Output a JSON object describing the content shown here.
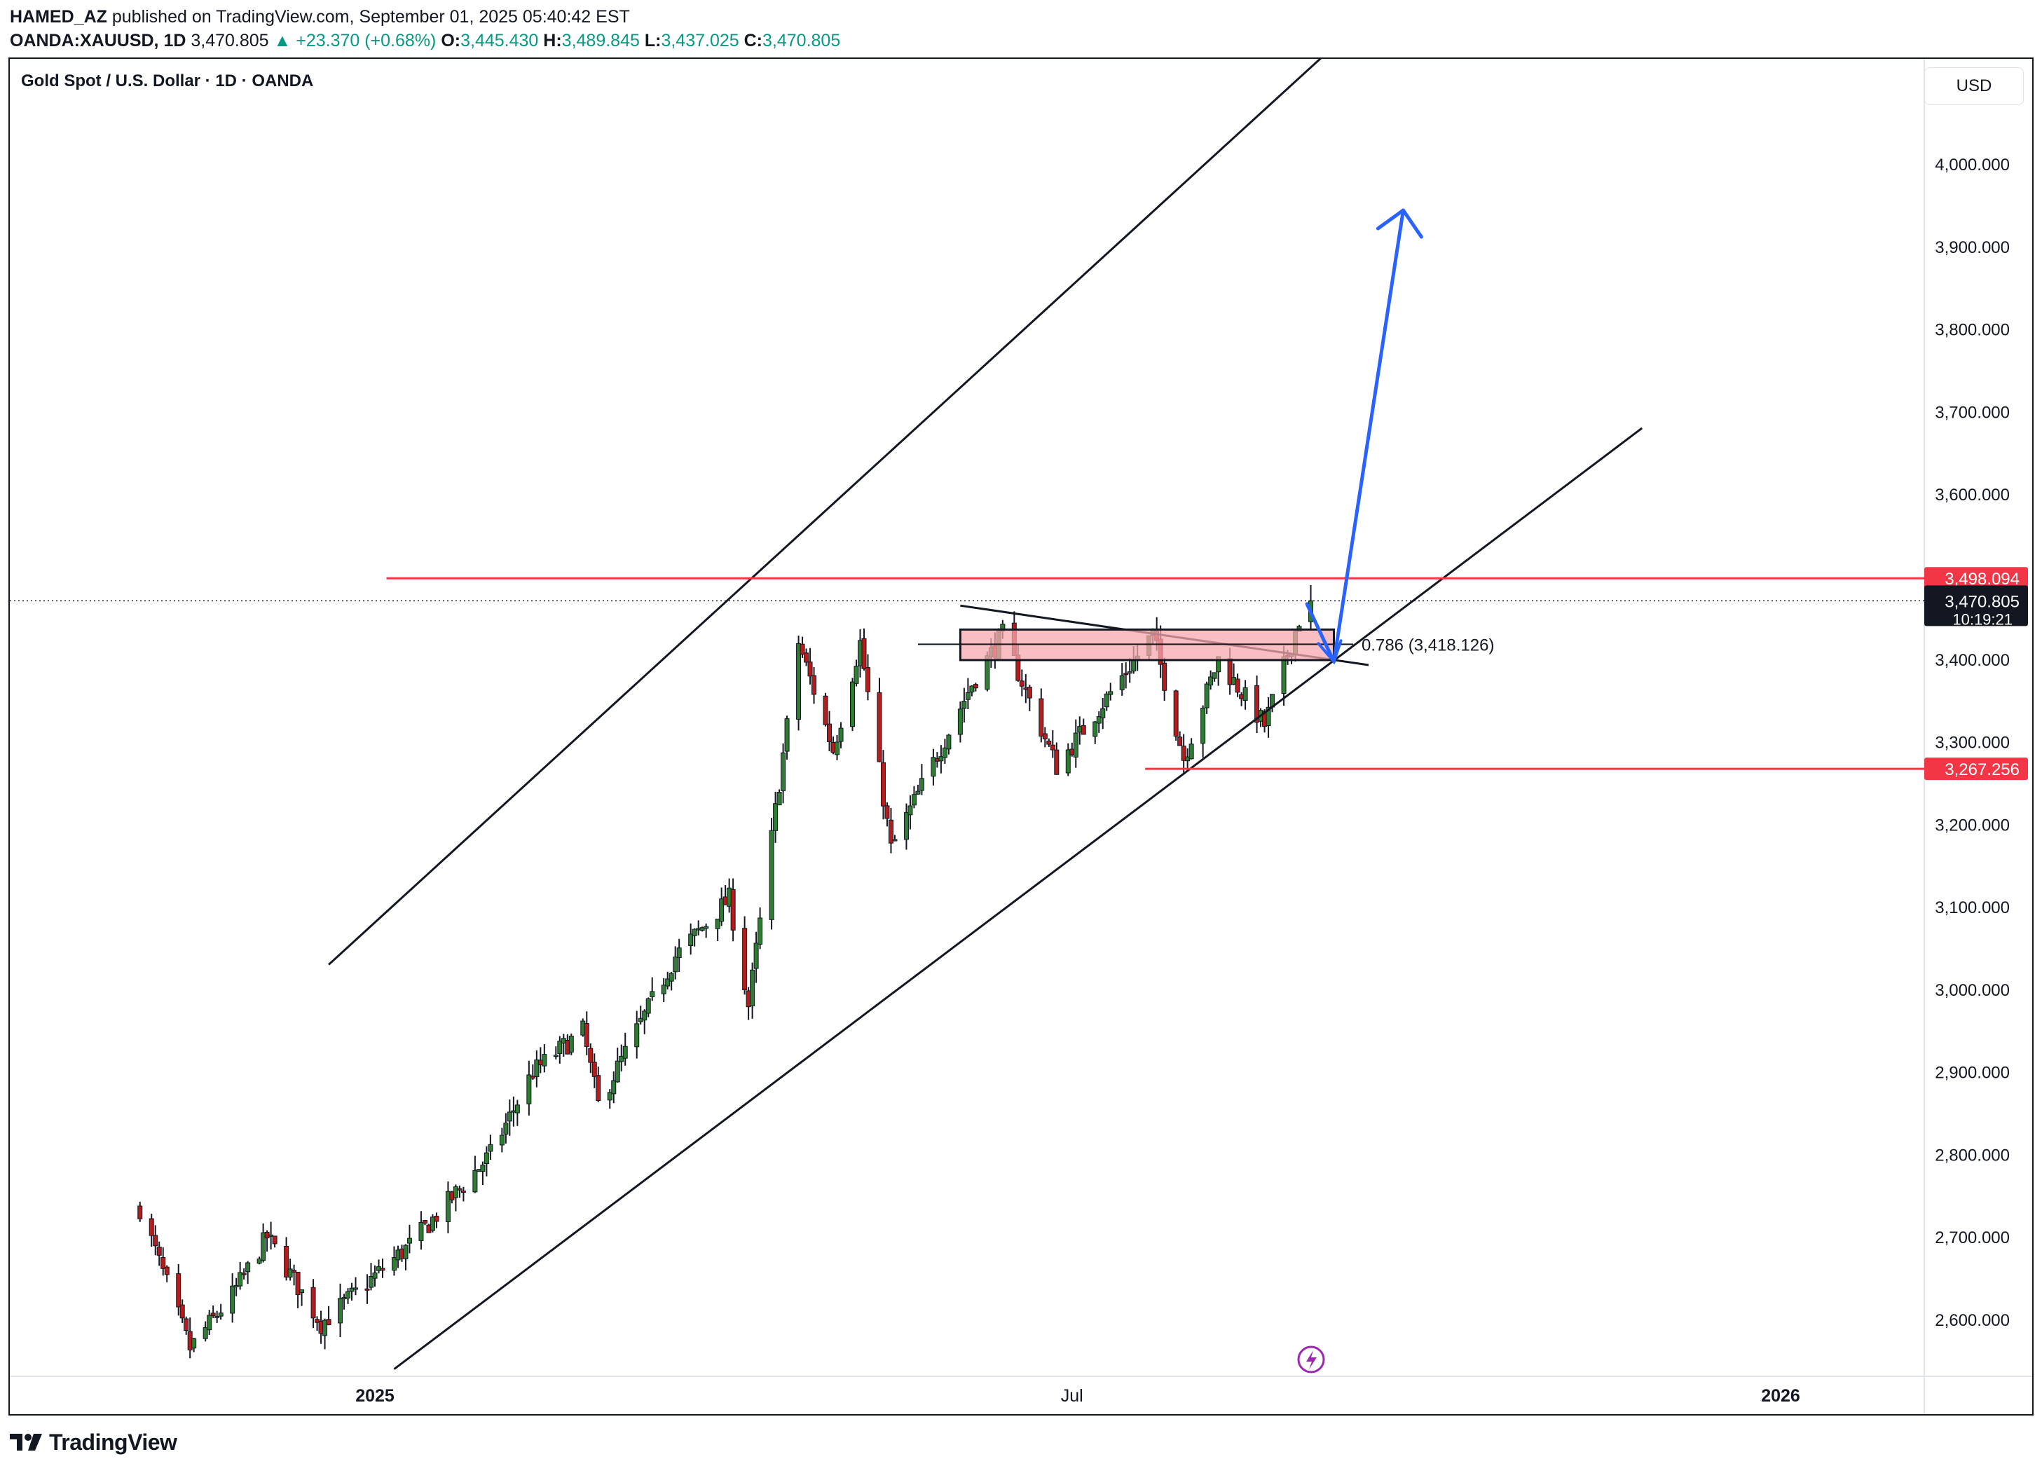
{
  "header": {
    "author": "HAMED_AZ",
    "published_text": "published on TradingView.com, September 01, 2025 05:40:42 EST",
    "symbol": "OANDA:XAUUSD, 1D",
    "last": "3,470.805",
    "change": "▲ +23.370 (+0.68%)",
    "o_label": "O:",
    "o_value": "3,445.430",
    "h_label": "H:",
    "h_value": "3,489.845",
    "l_label": "L:",
    "l_value": "3,437.025",
    "c_label": "C:",
    "c_value": "3,470.805"
  },
  "chart_title": "Gold Spot / U.S. Dollar · 1D · OANDA",
  "currency_label": "USD",
  "footer": {
    "brand": "TradingView"
  },
  "colors": {
    "up": "#089981",
    "down": "#f23645",
    "candle_body_up": "#2e7d32",
    "candle_body_down": "#b71c1c",
    "channel": "#131722",
    "level": "#f23645",
    "arrow": "#2962ff",
    "zone_fill": "#f7a8ad"
  },
  "chart_data": {
    "type": "candlestick",
    "x_ticks": [
      "2025",
      "Jul",
      "2026"
    ],
    "y_ticks": [
      "2,600.000",
      "2,700.000",
      "2,800.000",
      "2,900.000",
      "3,000.000",
      "3,100.000",
      "3,200.000",
      "3,300.000",
      "3,400.000",
      "3,500.000",
      "3,600.000",
      "3,700.000",
      "3,800.000",
      "3,900.000",
      "4,000.000"
    ],
    "y_tick_values": [
      2600,
      2700,
      2800,
      2900,
      3000,
      3100,
      3200,
      3300,
      3400,
      3500,
      3600,
      3700,
      3800,
      3900,
      4000
    ],
    "ylim": [
      2533,
      4130
    ],
    "price_labels": [
      {
        "text": "3,498.094",
        "value": 3498.094,
        "kind": "level"
      },
      {
        "text": "3,470.805",
        "sub": "10:19:21",
        "value": 3470.805,
        "kind": "last"
      },
      {
        "text": "3,267.256",
        "value": 3267.256,
        "kind": "level"
      }
    ],
    "fib_label": "0.786 (3,418.126)",
    "anchors": [
      {
        "date": "2024-11-01",
        "close": 2735
      },
      {
        "date": "2024-11-14",
        "close": 2565
      },
      {
        "date": "2024-11-25",
        "close": 2630
      },
      {
        "date": "2024-12-04",
        "close": 2700
      },
      {
        "date": "2024-12-18",
        "close": 2595
      },
      {
        "date": "2025-01-10",
        "close": 2690
      },
      {
        "date": "2025-01-31",
        "close": 2800
      },
      {
        "date": "2025-02-11",
        "close": 2900
      },
      {
        "date": "2025-02-24",
        "close": 2950
      },
      {
        "date": "2025-02-28",
        "close": 2860
      },
      {
        "date": "2025-03-20",
        "close": 3040
      },
      {
        "date": "2025-04-03",
        "close": 3110
      },
      {
        "date": "2025-04-08",
        "close": 2980
      },
      {
        "date": "2025-04-21",
        "close": 3420
      },
      {
        "date": "2025-04-30",
        "close": 3290
      },
      {
        "date": "2025-05-07",
        "close": 3420
      },
      {
        "date": "2025-05-15",
        "close": 3170
      },
      {
        "date": "2025-06-05",
        "close": 3370
      },
      {
        "date": "2025-06-13",
        "close": 3430
      },
      {
        "date": "2025-06-27",
        "close": 3270
      },
      {
        "date": "2025-07-22",
        "close": 3430
      },
      {
        "date": "2025-07-30",
        "close": 3280
      },
      {
        "date": "2025-08-08",
        "close": 3400
      },
      {
        "date": "2025-08-20",
        "close": 3320
      },
      {
        "date": "2025-08-29",
        "close": 3448
      },
      {
        "date": "2025-09-01",
        "close": 3470.805
      }
    ],
    "channel_upper": [
      {
        "date": "2024-12-20",
        "value": 3030
      },
      {
        "date": "2026-01-04",
        "value": 4650
      }
    ],
    "channel_lower": [
      {
        "date": "2025-01-06",
        "value": 2540
      },
      {
        "date": "2025-11-26",
        "value": 3680
      }
    ],
    "triangle_line": [
      {
        "date": "2025-06-02",
        "value": 3465
      },
      {
        "date": "2025-09-16",
        "value": 3393
      }
    ],
    "levels": [
      {
        "value": 3498.094,
        "from": "2025-01-04"
      },
      {
        "value": 3267.256,
        "from": "2025-07-20"
      }
    ],
    "zone": {
      "from": "2025-06-02",
      "to": "2025-09-07",
      "top": 3436,
      "bottom": 3399
    },
    "fib_line": {
      "from": "2025-05-22",
      "to": "2025-09-12",
      "value": 3418.126
    },
    "projection": [
      {
        "date": "2025-08-31",
        "value": 3467
      },
      {
        "date": "2025-09-07",
        "value": 3397
      },
      {
        "date": "2025-09-25",
        "value": 3944
      }
    ]
  }
}
